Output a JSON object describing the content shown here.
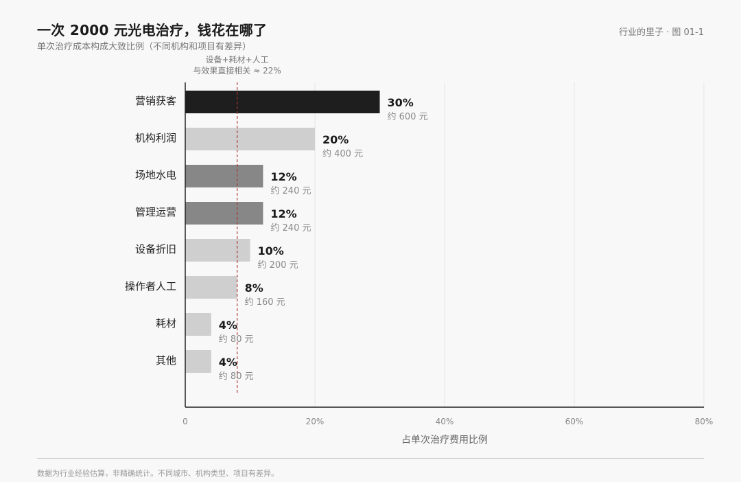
{
  "header": {
    "title": "一次 2000 元光电治疗，钱花在哪了",
    "subtitle": "单次治疗成本构成大致比例（不同机构和项目有差异）",
    "source_tag": "行业的里子 · 图 01-1"
  },
  "footer": {
    "note": "数据为行业经验估算，非精确统计。不同城市、机构类型、项目有差异。"
  },
  "chart_data": {
    "type": "bar",
    "orientation": "horizontal",
    "title": "",
    "xlabel": "占单次治疗费用比例",
    "ylabel": "",
    "xlim": [
      0,
      80
    ],
    "xticks": [
      0,
      20,
      40,
      60,
      80
    ],
    "xtick_labels": [
      "0",
      "20%",
      "40%",
      "60%",
      "80%"
    ],
    "grid": true,
    "categories": [
      "营销获客",
      "机构利润",
      "场地水电",
      "管理运营",
      "设备折旧",
      "操作者人工",
      "耗材",
      "其他"
    ],
    "values": [
      30,
      20,
      12,
      12,
      10,
      8,
      4,
      4
    ],
    "value_labels": [
      "30%",
      "20%",
      "12%",
      "12%",
      "10%",
      "8%",
      "4%",
      "4%"
    ],
    "amount_labels": [
      "约 600 元",
      "约 400 元",
      "约 240 元",
      "约 240 元",
      "约 200 元",
      "约 160 元",
      "约 80 元",
      "约 80 元"
    ],
    "bar_colors": [
      "#1e1e1e",
      "#cfcfcf",
      "#878787",
      "#878787",
      "#cfcfcf",
      "#cfcfcf",
      "#cfcfcf",
      "#cfcfcf"
    ],
    "reference_line": {
      "x": 8,
      "color": "#b03030",
      "style": "dashed",
      "label_line1": "设备+耗材+人工",
      "label_line2": "与效果直接相关 ≈ 22%"
    }
  }
}
